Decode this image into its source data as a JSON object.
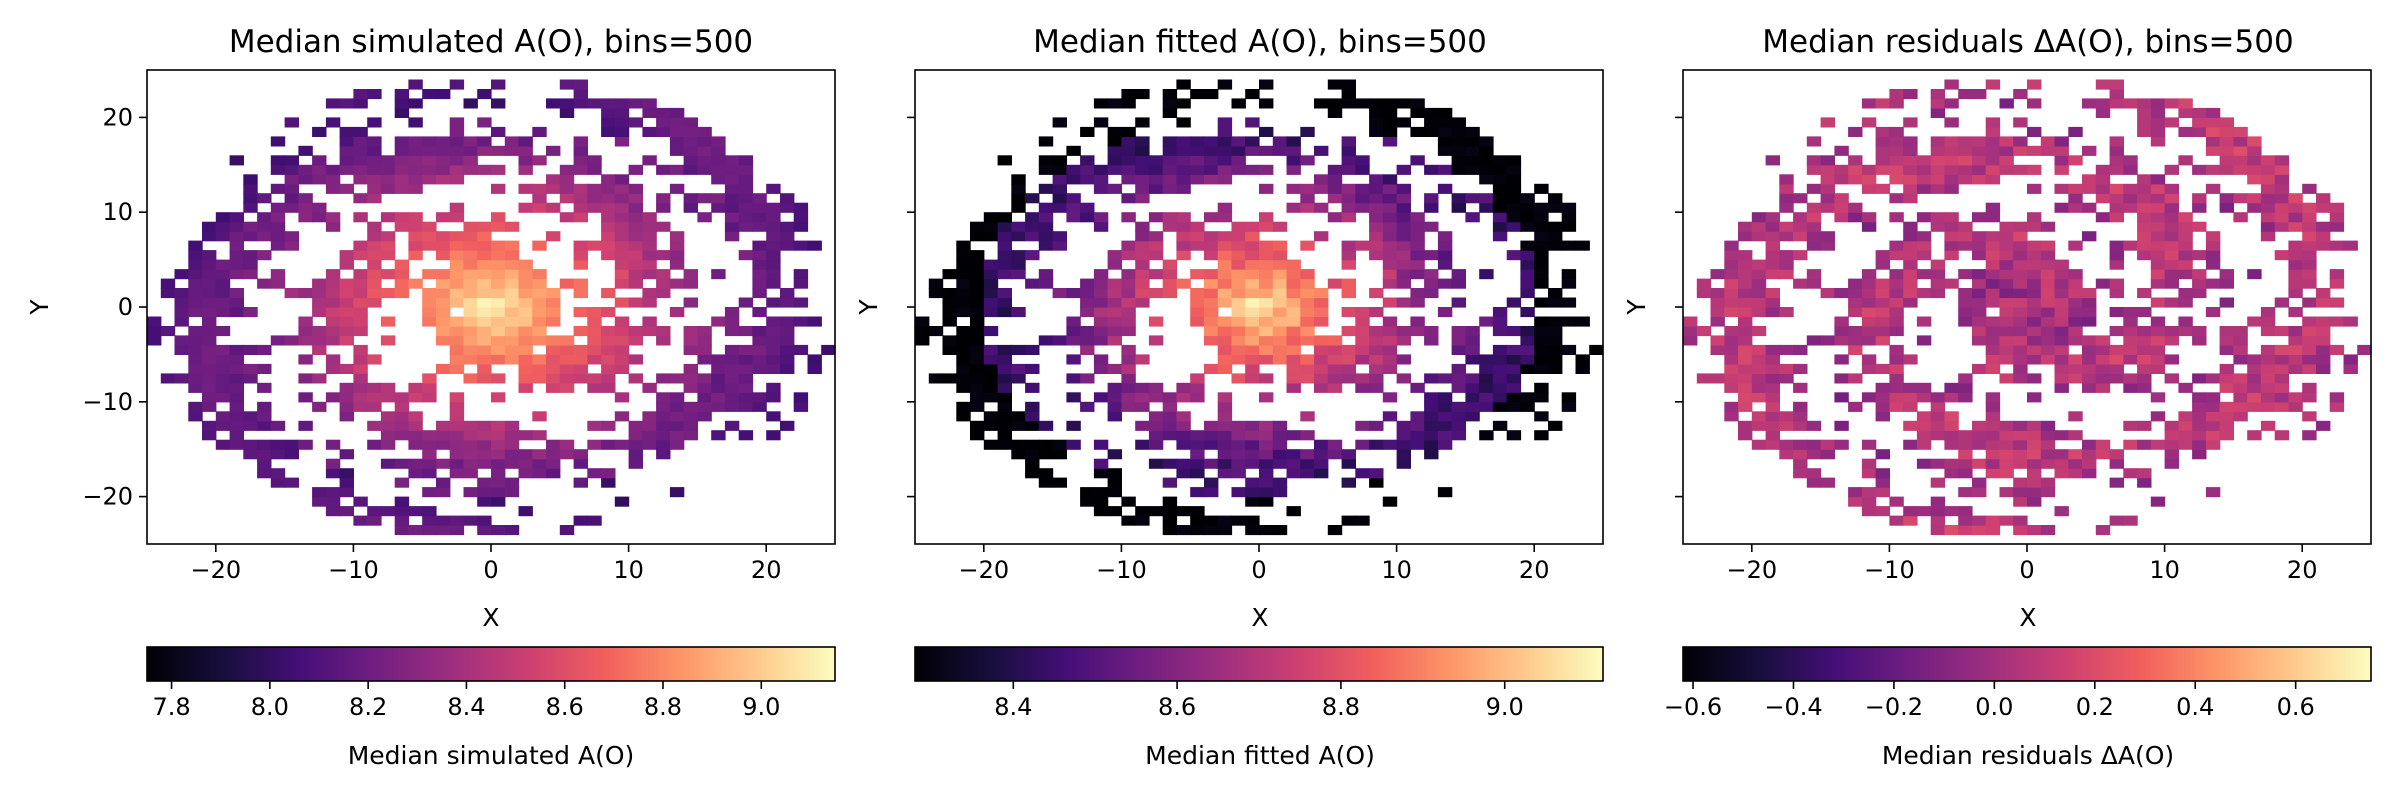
{
  "colormap": "magma",
  "colormap_stops": [
    "#000004",
    "#180f3d",
    "#440f76",
    "#721f81",
    "#9e2f7f",
    "#cd4071",
    "#f1605d",
    "#fd9668",
    "#feca8d",
    "#fcfdbf"
  ],
  "chart_data": [
    {
      "type": "heatmap",
      "title": "Median simulated A(O), bins=500",
      "xlabel": "X",
      "ylabel": "Y",
      "xlim": [
        -25,
        25
      ],
      "ylim": [
        -25,
        25
      ],
      "xticks": [
        -20,
        -10,
        0,
        10,
        20
      ],
      "yticks": [
        -20,
        -10,
        0,
        10,
        20
      ],
      "xtick_labels": [
        "−20",
        "−10",
        "0",
        "10",
        "20"
      ],
      "ytick_labels": [
        "−20",
        "−10",
        "0",
        "10",
        "20"
      ],
      "show_yticklabels": true,
      "pattern": {
        "center_value": 9.15,
        "edge_value": 8.2,
        "outer_rim_value": 8.1
      },
      "colorbar": {
        "label": "Median simulated A(O)",
        "range": [
          7.75,
          9.15
        ],
        "ticks": [
          7.8,
          8.0,
          8.2,
          8.4,
          8.6,
          8.8,
          9.0
        ],
        "tick_labels": [
          "7.8",
          "8.0",
          "8.2",
          "8.4",
          "8.6",
          "8.8",
          "9.0"
        ]
      }
    },
    {
      "type": "heatmap",
      "title": "Median fitted A(O), bins=500",
      "xlabel": "X",
      "ylabel": "Y",
      "xlim": [
        -25,
        25
      ],
      "ylim": [
        -25,
        25
      ],
      "xticks": [
        -20,
        -10,
        0,
        10,
        20
      ],
      "yticks": [
        -20,
        -10,
        0,
        10,
        20
      ],
      "xtick_labels": [
        "−20",
        "−10",
        "0",
        "10",
        "20"
      ],
      "ytick_labels": [
        "−20",
        "−10",
        "0",
        "10",
        "20"
      ],
      "show_yticklabels": false,
      "pattern": {
        "center_value": 9.1,
        "edge_value": 8.45,
        "outer_rim_value": 8.28
      },
      "colorbar": {
        "label": "Median fitted A(O)",
        "range": [
          8.28,
          9.12
        ],
        "ticks": [
          8.4,
          8.6,
          8.8,
          9.0
        ],
        "tick_labels": [
          "8.4",
          "8.6",
          "8.8",
          "9.0"
        ]
      }
    },
    {
      "type": "heatmap",
      "title": "Median residuals ΔA(O), bins=500",
      "xlabel": "X",
      "ylabel": "Y",
      "xlim": [
        -25,
        25
      ],
      "ylim": [
        -25,
        25
      ],
      "xticks": [
        -20,
        -10,
        0,
        10,
        20
      ],
      "yticks": [
        -20,
        -10,
        0,
        10,
        20
      ],
      "xtick_labels": [
        "−20",
        "−10",
        "0",
        "10",
        "20"
      ],
      "ytick_labels": [
        "−20",
        "−10",
        "0",
        "10",
        "20"
      ],
      "show_yticklabels": false,
      "pattern": {
        "center_value": 0.02,
        "edge_value": 0.0,
        "outer_rim_value": 0.08
      },
      "colorbar": {
        "label": "Median residuals ΔA(O)",
        "range": [
          -0.62,
          0.75
        ],
        "ticks": [
          -0.6,
          -0.4,
          -0.2,
          0.0,
          0.2,
          0.4,
          0.6
        ],
        "tick_labels": [
          "−0.6",
          "−0.4",
          "−0.2",
          "0.0",
          "0.2",
          "0.4",
          "0.6"
        ]
      }
    }
  ]
}
